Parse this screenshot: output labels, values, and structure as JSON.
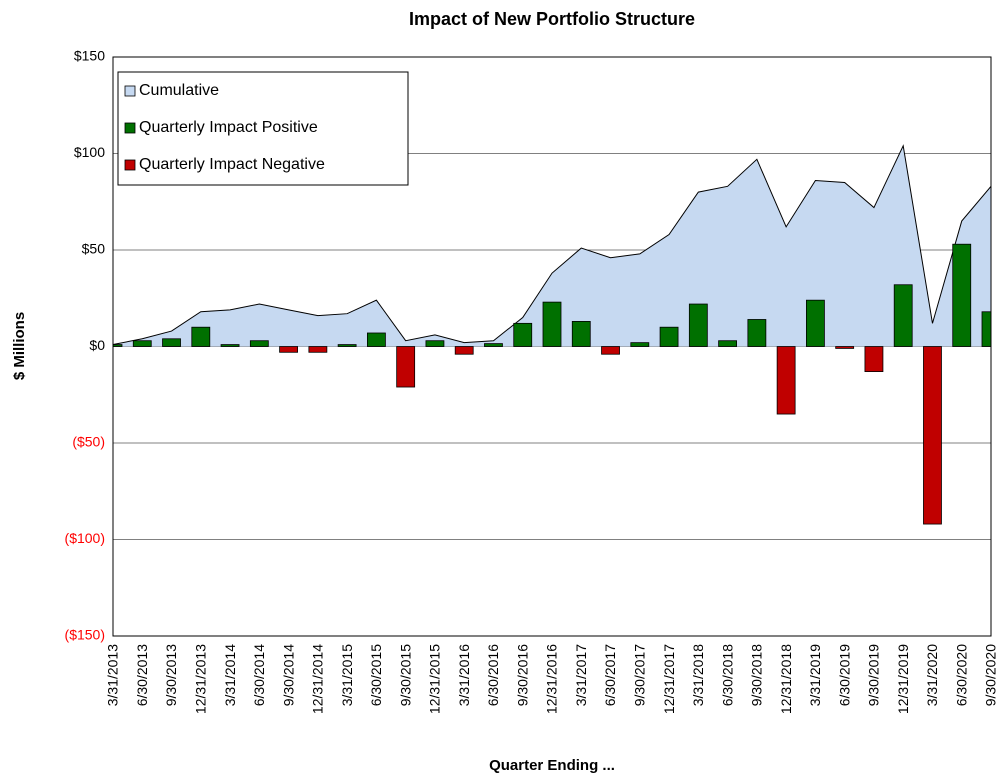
{
  "chart_data": {
    "type": "bar",
    "title": "Impact of New Portfolio Structure",
    "xlabel": "Quarter Ending ...",
    "ylabel": "$ Millions",
    "categories": [
      "3/31/2013",
      "6/30/2013",
      "9/30/2013",
      "12/31/2013",
      "3/31/2014",
      "6/30/2014",
      "9/30/2014",
      "12/31/2014",
      "3/31/2015",
      "6/30/2015",
      "9/30/2015",
      "12/31/2015",
      "3/31/2016",
      "6/30/2016",
      "9/30/2016",
      "12/31/2016",
      "3/31/2017",
      "6/30/2017",
      "9/30/2017",
      "12/31/2017",
      "3/31/2018",
      "6/30/2018",
      "9/30/2018",
      "12/31/2018",
      "3/31/2019",
      "6/30/2019",
      "9/30/2019",
      "12/31/2019",
      "3/31/2020",
      "6/30/2020",
      "9/30/2020"
    ],
    "series": [
      {
        "name": "Cumulative",
        "type": "area",
        "color": "#c6d9f1",
        "line_color": "#000000",
        "values": [
          1,
          4,
          8,
          18,
          19,
          22,
          19,
          16,
          17,
          24,
          3,
          6,
          2,
          3,
          15,
          38,
          51,
          46,
          48,
          58,
          80,
          83,
          97,
          62,
          86,
          85,
          72,
          104,
          12,
          65,
          83
        ]
      },
      {
        "name": "Quarterly Impact Positive",
        "type": "bar",
        "color": "#007000",
        "values": [
          1,
          3,
          4,
          10,
          1,
          3,
          null,
          null,
          1,
          7,
          null,
          3,
          null,
          1.5,
          12,
          23,
          13,
          null,
          2,
          10,
          22,
          3,
          14,
          null,
          24,
          null,
          null,
          32,
          null,
          53,
          18
        ]
      },
      {
        "name": "Quarterly Impact Negative",
        "type": "bar",
        "color": "#c00000",
        "values": [
          null,
          null,
          null,
          null,
          null,
          null,
          -3,
          -3,
          null,
          null,
          -21,
          null,
          -4,
          null,
          null,
          null,
          null,
          -4,
          null,
          null,
          null,
          null,
          null,
          -35,
          null,
          -1,
          -13,
          null,
          -92,
          null,
          null
        ]
      }
    ],
    "ylim": [
      -150,
      150
    ],
    "yticks": [
      {
        "value": -150,
        "label": "($150)"
      },
      {
        "value": -100,
        "label": "($100)"
      },
      {
        "value": -50,
        "label": "($50)"
      },
      {
        "value": 0,
        "label": "$0"
      },
      {
        "value": 50,
        "label": "$50"
      },
      {
        "value": 100,
        "label": "$100"
      },
      {
        "value": 150,
        "label": "$150"
      }
    ],
    "negative_tick_color": "#ff0000",
    "grid": true,
    "legend": "top-left"
  }
}
